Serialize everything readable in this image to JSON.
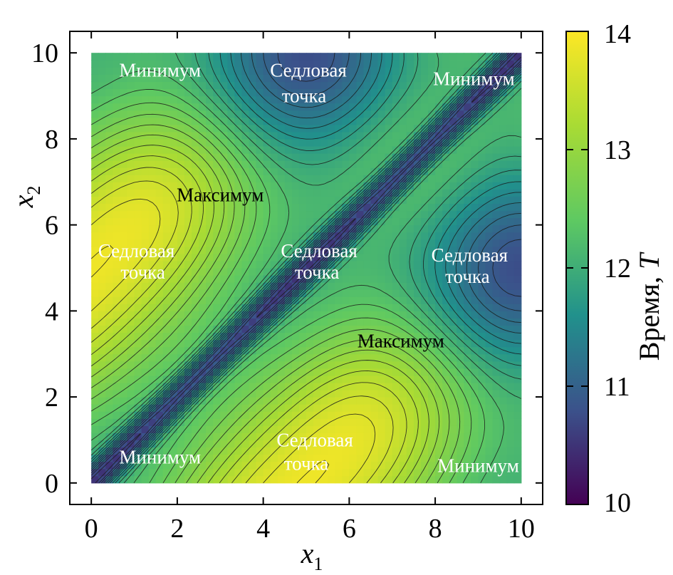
{
  "chart_data": {
    "type": "heatmap",
    "subtype": "contour",
    "xlabel": "x",
    "xlabel_sub": "1",
    "ylabel": "x",
    "ylabel_sub": "2",
    "xlim": [
      -0.5,
      10.5
    ],
    "ylim": [
      -0.5,
      10.5
    ],
    "x_ticks": [
      0,
      2,
      4,
      6,
      8,
      10
    ],
    "y_ticks": [
      0,
      2,
      4,
      6,
      8,
      10
    ],
    "data_domain": [
      0,
      10
    ],
    "colorbar": {
      "label": "Время, ",
      "label_italic": "T",
      "range": [
        10,
        14
      ],
      "ticks": [
        10,
        11,
        12,
        13,
        14
      ],
      "colormap": [
        "#440154",
        "#3b528b",
        "#21918c",
        "#5ec962",
        "#a8db34",
        "#fde725"
      ]
    },
    "contour_levels": 26,
    "annotations": [
      {
        "text": "Минимум",
        "x": 1.6,
        "y": 9.6,
        "color": "#ffffff"
      },
      {
        "text": "Седловая",
        "x": 5.05,
        "y": 9.6,
        "color": "#ffffff"
      },
      {
        "text": "точка",
        "x": 4.95,
        "y": 9.0,
        "color": "#ffffff"
      },
      {
        "text": "Минимум",
        "x": 8.9,
        "y": 9.4,
        "color": "#ffffff"
      },
      {
        "text": "Максимум",
        "x": 3.0,
        "y": 6.7,
        "color": "#000000"
      },
      {
        "text": "Седловая",
        "x": 1.05,
        "y": 5.4,
        "color": "#ffffff"
      },
      {
        "text": "точка",
        "x": 1.2,
        "y": 4.9,
        "color": "#ffffff"
      },
      {
        "text": "Седловая",
        "x": 5.3,
        "y": 5.4,
        "color": "#ffffff"
      },
      {
        "text": "точка",
        "x": 5.25,
        "y": 4.9,
        "color": "#ffffff"
      },
      {
        "text": "Седловая",
        "x": 8.8,
        "y": 5.3,
        "color": "#ffffff"
      },
      {
        "text": "точка",
        "x": 8.75,
        "y": 4.8,
        "color": "#ffffff"
      },
      {
        "text": "Максимум",
        "x": 7.2,
        "y": 3.3,
        "color": "#000000"
      },
      {
        "text": "Минимум",
        "x": 1.6,
        "y": 0.6,
        "color": "#ffffff"
      },
      {
        "text": "Седловая",
        "x": 5.2,
        "y": 1.0,
        "color": "#ffffff"
      },
      {
        "text": "точка",
        "x": 5.0,
        "y": 0.45,
        "color": "#ffffff"
      },
      {
        "text": "Минимум",
        "x": 9.0,
        "y": 0.4,
        "color": "#ffffff"
      }
    ]
  }
}
